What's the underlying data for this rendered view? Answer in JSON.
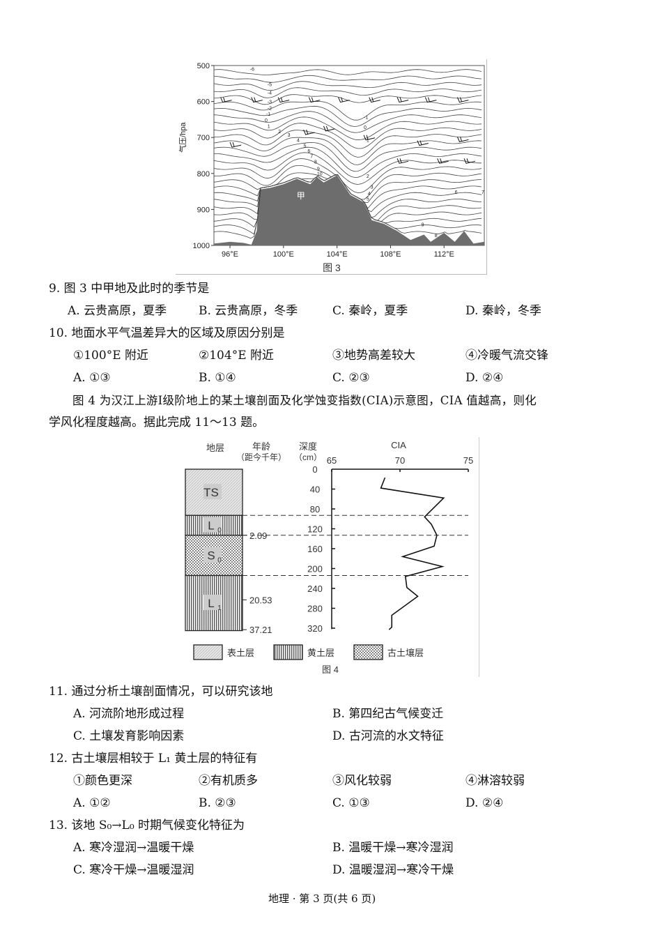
{
  "figure3": {
    "caption": "图 3",
    "y_axis_label": "气压/hpa",
    "y_ticks": [
      "500",
      "600",
      "700",
      "800",
      "900",
      "1000"
    ],
    "x_ticks": [
      "96°E",
      "100°E",
      "104°E",
      "108°E",
      "112°E"
    ],
    "region_label": "甲",
    "isotherm_labels_left": [
      "-6",
      "-5",
      "-4",
      "-3",
      "-2",
      "-1",
      "0",
      "1",
      "2",
      "3",
      "4",
      "5",
      "6",
      "7",
      "8",
      "9",
      "10"
    ],
    "isotherm_labels_right": [
      "-1",
      "0",
      "1",
      "2",
      "3",
      "4",
      "5",
      "6",
      "7",
      "9",
      "8"
    ]
  },
  "q9": {
    "stem": "9. 图 3 中甲地及此时的季节是",
    "options": [
      "A. 云贵高原，夏季",
      "B. 云贵高原，冬季",
      "C. 秦岭，夏季",
      "D. 秦岭，冬季"
    ]
  },
  "q10": {
    "stem": "10. 地面水平气温差异大的区域及原因分别是",
    "items": [
      "①100°E 附近",
      "②104°E 附近",
      "③地势高差较大",
      "④冷暖气流交锋"
    ],
    "options": [
      "A. ①③",
      "B. ①④",
      "C. ②③",
      "D. ②④"
    ]
  },
  "intro": {
    "line1": "图 4 为汉江上游Ⅰ级阶地上的某土壤剖面及化学蚀变指数(CIA)示意图，CIA 值越高，则化",
    "line2": "学风化程度越高。据此完成 11～13 题。"
  },
  "figure4": {
    "caption": "图 4",
    "col_stratum": "地层",
    "col_age": "年龄",
    "col_age_unit": "（距今千年）",
    "col_depth": "深度",
    "col_depth_unit": "（cm）",
    "cia_title": "CIA",
    "cia_ticks": [
      "65",
      "70",
      "75"
    ],
    "depth_ticks": [
      "0",
      "40",
      "80",
      "120",
      "160",
      "200",
      "240",
      "280",
      "320"
    ],
    "layers": [
      {
        "label": "TS",
        "sub": "",
        "type": "surface",
        "top": 0,
        "bottom": 93
      },
      {
        "label": "L",
        "sub": "0",
        "type": "loess",
        "top": 93,
        "bottom": 133
      },
      {
        "label": "S",
        "sub": "0",
        "type": "paleosol",
        "top": 133,
        "bottom": 214
      },
      {
        "label": "L",
        "sub": "1",
        "type": "loess",
        "top": 214,
        "bottom": 325
      }
    ],
    "ages": [
      {
        "value": "2.09",
        "depth": 133
      },
      {
        "value": "20.53",
        "depth": 263
      },
      {
        "value": "37.21",
        "depth": 323
      }
    ],
    "cia_curve": [
      [
        17,
        68.9
      ],
      [
        38,
        68.6
      ],
      [
        58,
        73.2
      ],
      [
        96,
        71.8
      ],
      [
        111,
        72.3
      ],
      [
        133,
        72.7
      ],
      [
        155,
        72.5
      ],
      [
        176,
        70.2
      ],
      [
        196,
        73.1
      ],
      [
        216,
        70.4
      ],
      [
        238,
        70.5
      ],
      [
        256,
        71.3
      ],
      [
        294,
        69.4
      ],
      [
        318,
        69.4
      ],
      [
        323,
        69.2
      ]
    ],
    "legend": [
      "表土层",
      "黄土层",
      "古土壤层"
    ]
  },
  "q11": {
    "stem": "11. 通过分析土壤剖面情况，可以研究该地",
    "options": [
      "A. 河流阶地形成过程",
      "B. 第四纪古气候变迁",
      "C. 土壤发育影响因素",
      "D. 古河流的水文特征"
    ]
  },
  "q12": {
    "stem": "12. 古土壤层相较于 L₁ 黄土层的特征有",
    "items": [
      "①颜色更深",
      "②有机质多",
      "③风化较弱",
      "④淋溶较弱"
    ],
    "options": [
      "A. ①②",
      "B. ②③",
      "C. ①③",
      "D. ②④"
    ]
  },
  "q13": {
    "stem": "13. 该地 S₀→L₀ 时期气候变化特征为",
    "options": [
      "A. 寒冷湿润→温暖干燥",
      "B. 温暖干燥→寒冷湿润",
      "C. 寒冷干燥→温暖湿润",
      "D. 温暖湿润→寒冷干燥"
    ]
  },
  "footer": "地理 · 第 3 页(共 6 页)"
}
